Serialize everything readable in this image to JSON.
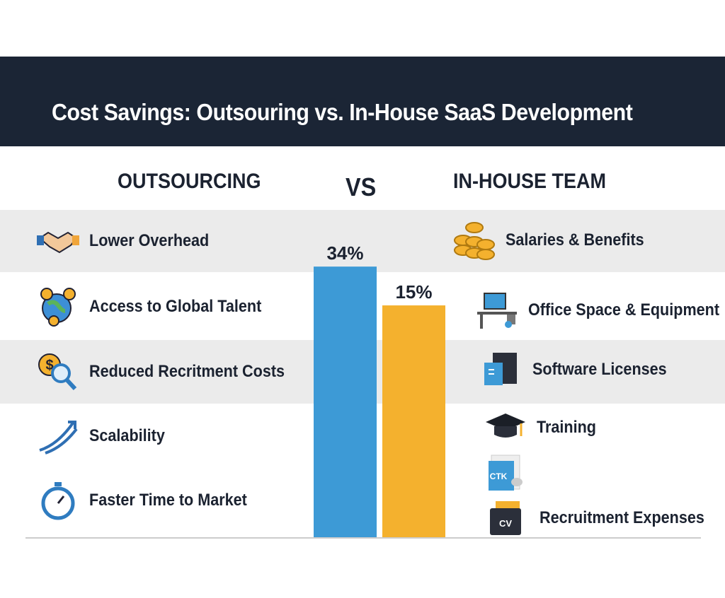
{
  "title": "Cost Savings: Outsouring vs. In-House SaaS Development",
  "left_heading": "OUTSOURCING",
  "vs_label": "VS",
  "right_heading": "IN-HOUSE TEAM",
  "outsourcing_items": [
    {
      "label": "Lower Overhead",
      "icon": "handshake-icon"
    },
    {
      "label": "Access to Global Talent",
      "icon": "globe-coins-icon"
    },
    {
      "label": "Reduced Recritment Costs",
      "icon": "coin-magnifier-icon"
    },
    {
      "label": "Scalability",
      "icon": "trend-arrows-icon"
    },
    {
      "label": "Faster Time to Market",
      "icon": "stopwatch-icon"
    }
  ],
  "inhouse_items": [
    {
      "label": "Salaries & Benefits",
      "icon": "coin-stacks-icon"
    },
    {
      "label": "Office Space & Equipment",
      "icon": "desk-computer-icon"
    },
    {
      "label": "Software Licenses",
      "icon": "server-icon"
    },
    {
      "label": "Training",
      "icon": "graduation-cap-icon"
    },
    {
      "label": "",
      "icon": "cv-document-icon",
      "icon_text": "CTK"
    },
    {
      "label": "Recruitment Expenses",
      "icon": "cv-folder-icon",
      "icon_text": "CV"
    }
  ],
  "chart_data": {
    "type": "bar",
    "categories": [
      "Outsourcing",
      "In-House Team"
    ],
    "values": [
      34,
      15
    ],
    "data_labels": [
      "34%",
      "15%"
    ],
    "colors": [
      "#3d9ad6",
      "#f4b12e"
    ],
    "grid": false
  }
}
